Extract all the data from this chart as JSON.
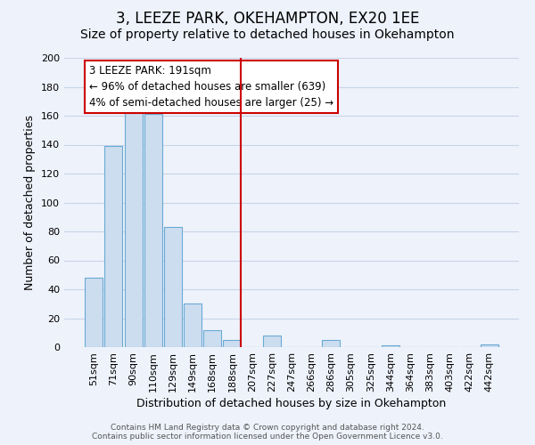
{
  "title": "3, LEEZE PARK, OKEHAMPTON, EX20 1EE",
  "subtitle": "Size of property relative to detached houses in Okehampton",
  "xlabel": "Distribution of detached houses by size in Okehampton",
  "ylabel": "Number of detached properties",
  "bar_labels": [
    "51sqm",
    "71sqm",
    "90sqm",
    "110sqm",
    "129sqm",
    "149sqm",
    "168sqm",
    "188sqm",
    "207sqm",
    "227sqm",
    "247sqm",
    "266sqm",
    "286sqm",
    "305sqm",
    "325sqm",
    "344sqm",
    "364sqm",
    "383sqm",
    "403sqm",
    "422sqm",
    "442sqm"
  ],
  "bar_values": [
    48,
    139,
    166,
    161,
    83,
    30,
    12,
    5,
    0,
    8,
    0,
    0,
    5,
    0,
    0,
    1,
    0,
    0,
    0,
    0,
    2
  ],
  "bar_color": "#ccddf0",
  "bar_edge_color": "#6aaad4",
  "marker_index": 7,
  "marker_color": "#cc0000",
  "ylim": [
    0,
    200
  ],
  "yticks": [
    0,
    20,
    40,
    60,
    80,
    100,
    120,
    140,
    160,
    180,
    200
  ],
  "annotation_title": "3 LEEZE PARK: 191sqm",
  "annotation_line1": "← 96% of detached houses are smaller (639)",
  "annotation_line2": "4% of semi-detached houses are larger (25) →",
  "annotation_box_color": "#ffffff",
  "annotation_box_edge": "#cc0000",
  "footer_line1": "Contains HM Land Registry data © Crown copyright and database right 2024.",
  "footer_line2": "Contains public sector information licensed under the Open Government Licence v3.0.",
  "bg_color": "#eef2fb",
  "grid_color": "#c8d4e8",
  "title_fontsize": 12,
  "subtitle_fontsize": 10,
  "tick_fontsize": 8,
  "ylabel_fontsize": 9,
  "xlabel_fontsize": 9,
  "footer_fontsize": 6.5
}
